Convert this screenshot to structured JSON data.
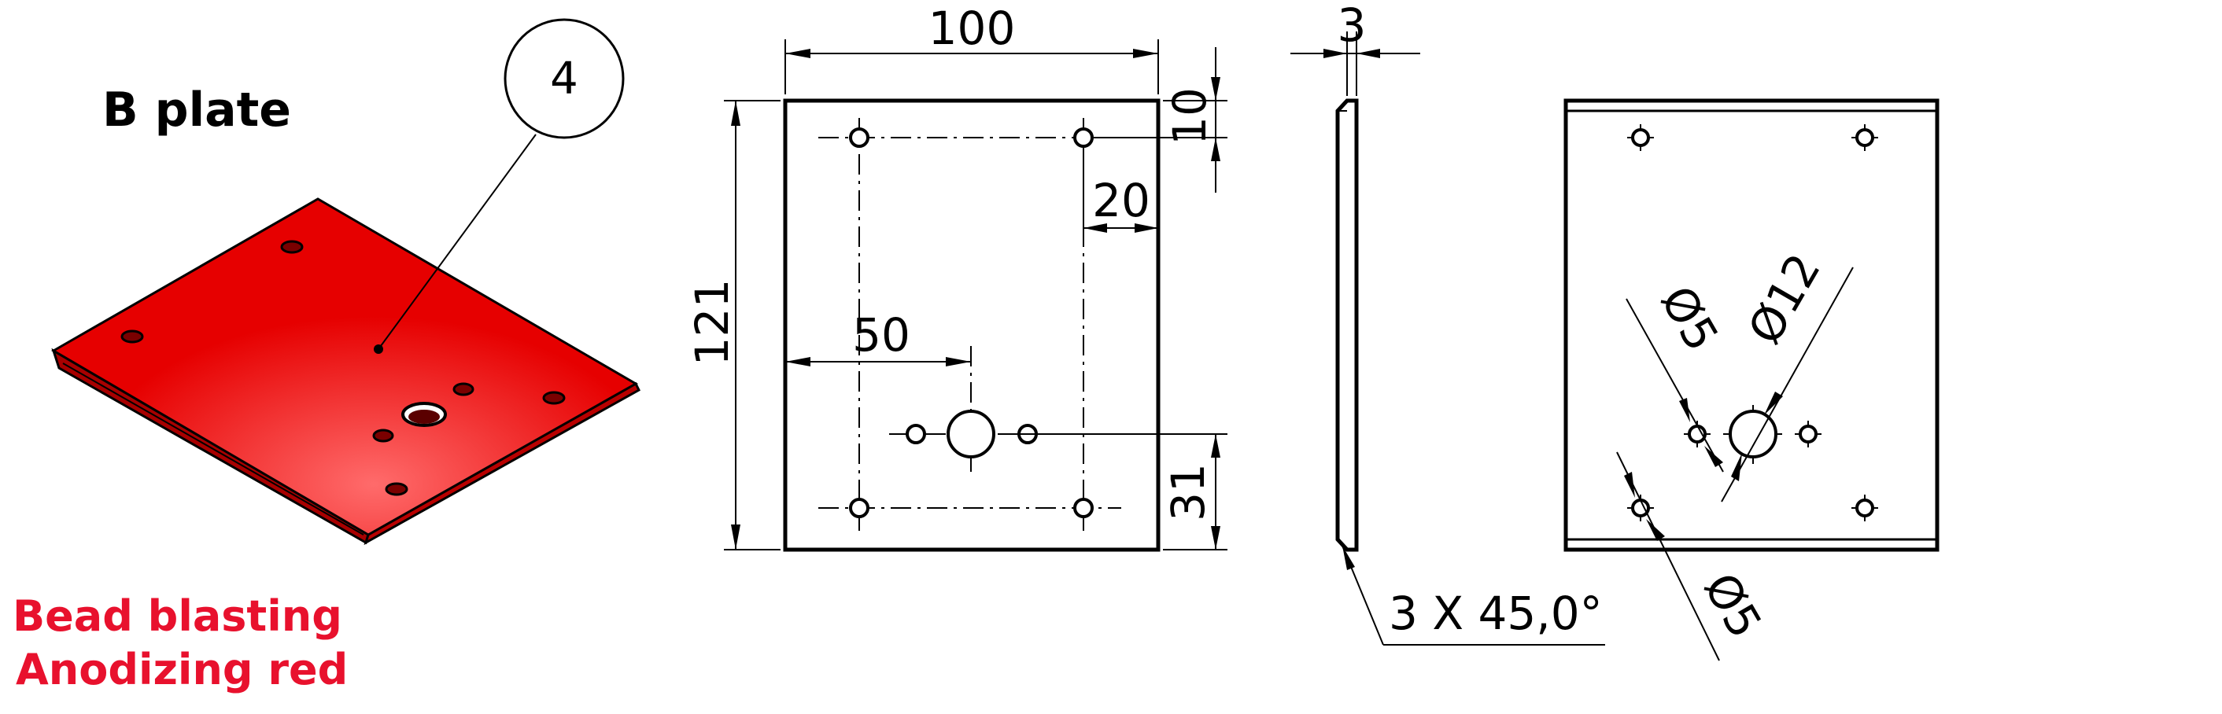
{
  "part": {
    "title": "B plate",
    "balloon_number": "4"
  },
  "finish": {
    "line1": "Bead blasting",
    "line2": "Anodizing red"
  },
  "colors": {
    "plate_red": "#e60000",
    "finish_text": "#e8112d",
    "line": "#000000"
  },
  "front_view": {
    "width": "100",
    "height": "121",
    "top_offset": "10",
    "side_offset": "20",
    "center_offset": "50",
    "bottom_offset": "31"
  },
  "side_view": {
    "thickness": "3",
    "chamfer": "3 X 45,0°"
  },
  "back_view": {
    "small_hole_a": "Ø5",
    "big_hole": "Ø12",
    "small_hole_b": "Ø5"
  }
}
